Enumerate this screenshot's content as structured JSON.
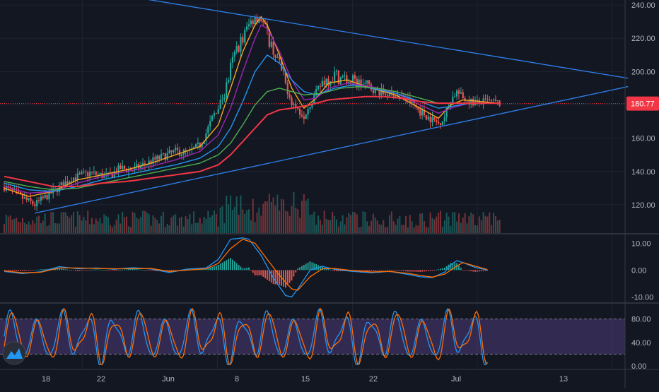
{
  "colors": {
    "background": "#131722",
    "grid": "#1f2331",
    "axis_text": "#b2b5be",
    "up": "#26a69a",
    "down": "#ef5350",
    "trendline": "#2f80ed",
    "ma_fast": "#f5a623",
    "ma_2": "#9c27b0",
    "ma_3": "#2196f3",
    "ma_4": "#4caf50",
    "ma_slow": "#f23645",
    "macd_line": "#2196f3",
    "signal_line": "#ff6d00",
    "stoch_k": "#2196f3",
    "stoch_d": "#ff6d00",
    "stoch_band": "#7e57c2",
    "price_label_bg": "#f23645"
  },
  "logo": {
    "icon": "tradingview-logo-icon"
  },
  "price_label": "180.77",
  "chart_data": [
    {
      "type": "candlestick",
      "panel": "price",
      "x_ticks": [
        "18",
        "22",
        "Jun",
        "8",
        "15",
        "22",
        "Jul",
        "13"
      ],
      "y_ticks": [
        "240.00",
        "220.00",
        "200.00",
        "180.00",
        "160.00",
        "140.00",
        "120.00"
      ],
      "ylim": [
        103,
        243
      ],
      "last_price": 180.77,
      "series": [
        {
          "name": "price",
          "anchors": [
            [
              0,
              131
            ],
            [
              3,
              124
            ],
            [
              5,
              120
            ],
            [
              8,
              128
            ],
            [
              11,
              136
            ],
            [
              14,
              139
            ],
            [
              17,
              137
            ],
            [
              19,
              142
            ],
            [
              21,
              141
            ],
            [
              24,
              146
            ],
            [
              26,
              149
            ],
            [
              28,
              152
            ],
            [
              30,
              151
            ],
            [
              32,
              156
            ],
            [
              33,
              163
            ],
            [
              34,
              172
            ],
            [
              36,
              186
            ],
            [
              37,
              202
            ],
            [
              38,
              214
            ],
            [
              39,
              220
            ],
            [
              40,
              228
            ],
            [
              41,
              234
            ],
            [
              42,
              232
            ],
            [
              43,
              222
            ],
            [
              44,
              213
            ],
            [
              45,
              204
            ],
            [
              46,
              192
            ],
            [
              47,
              182
            ],
            [
              48,
              177
            ],
            [
              49,
              174
            ],
            [
              50,
              181
            ],
            [
              51,
              187
            ],
            [
              52,
              194
            ],
            [
              54,
              198
            ],
            [
              56,
              195
            ],
            [
              58,
              193
            ],
            [
              60,
              190
            ],
            [
              62,
              187
            ],
            [
              64,
              186
            ],
            [
              66,
              183
            ],
            [
              68,
              176
            ],
            [
              70,
              171
            ],
            [
              71,
              169
            ],
            [
              72,
              173
            ],
            [
              73,
              183
            ],
            [
              74,
              188
            ],
            [
              75,
              184
            ],
            [
              77,
              181
            ],
            [
              79,
              182
            ],
            [
              81,
              181
            ]
          ]
        },
        {
          "name": "ma_fast",
          "anchors": [
            [
              0,
              130
            ],
            [
              4,
              125
            ],
            [
              8,
              128
            ],
            [
              12,
              135
            ],
            [
              16,
              138
            ],
            [
              20,
              141
            ],
            [
              24,
              145
            ],
            [
              28,
              150
            ],
            [
              32,
              155
            ],
            [
              35,
              168
            ],
            [
              37,
              190
            ],
            [
              39,
              212
            ],
            [
              41,
              228
            ],
            [
              42,
              233
            ],
            [
              43,
              228
            ],
            [
              45,
              210
            ],
            [
              47,
              190
            ],
            [
              49,
              178
            ],
            [
              51,
              184
            ],
            [
              53,
              193
            ],
            [
              56,
              195
            ],
            [
              60,
              190
            ],
            [
              64,
              186
            ],
            [
              68,
              178
            ],
            [
              71,
              172
            ],
            [
              73,
              180
            ],
            [
              75,
              183
            ],
            [
              81,
              181
            ]
          ]
        },
        {
          "name": "ma_2",
          "anchors": [
            [
              0,
              131
            ],
            [
              4,
              127
            ],
            [
              8,
              128
            ],
            [
              12,
              133
            ],
            [
              16,
              137
            ],
            [
              20,
              140
            ],
            [
              24,
              143
            ],
            [
              28,
              147
            ],
            [
              32,
              152
            ],
            [
              35,
              162
            ],
            [
              37,
              178
            ],
            [
              39,
              200
            ],
            [
              41,
              220
            ],
            [
              42,
              228
            ],
            [
              43,
              226
            ],
            [
              45,
              212
            ],
            [
              47,
              195
            ],
            [
              49,
              183
            ],
            [
              51,
              184
            ],
            [
              53,
              190
            ],
            [
              56,
              193
            ],
            [
              60,
              191
            ],
            [
              64,
              187
            ],
            [
              68,
              180
            ],
            [
              71,
              175
            ],
            [
              73,
              178
            ],
            [
              76,
              181
            ],
            [
              81,
              181
            ]
          ]
        },
        {
          "name": "ma_3",
          "anchors": [
            [
              0,
              133
            ],
            [
              4,
              129
            ],
            [
              8,
              128
            ],
            [
              12,
              131
            ],
            [
              16,
              135
            ],
            [
              20,
              138
            ],
            [
              24,
              141
            ],
            [
              28,
              144
            ],
            [
              32,
              148
            ],
            [
              35,
              155
            ],
            [
              37,
              166
            ],
            [
              39,
              182
            ],
            [
              41,
              200
            ],
            [
              43,
              210
            ],
            [
              45,
              205
            ],
            [
              47,
              195
            ],
            [
              49,
              188
            ],
            [
              51,
              186
            ],
            [
              54,
              190
            ],
            [
              57,
              192
            ],
            [
              60,
              190
            ],
            [
              64,
              187
            ],
            [
              68,
              182
            ],
            [
              71,
              178
            ],
            [
              73,
              179
            ],
            [
              76,
              181
            ],
            [
              81,
              181
            ]
          ]
        },
        {
          "name": "ma_4",
          "anchors": [
            [
              0,
              134
            ],
            [
              4,
              131
            ],
            [
              8,
              129
            ],
            [
              12,
              130
            ],
            [
              16,
              133
            ],
            [
              20,
              136
            ],
            [
              24,
              139
            ],
            [
              28,
              142
            ],
            [
              32,
              145
            ],
            [
              35,
              150
            ],
            [
              37,
              157
            ],
            [
              39,
              168
            ],
            [
              41,
              180
            ],
            [
              43,
              188
            ],
            [
              45,
              190
            ],
            [
              47,
              188
            ],
            [
              49,
              186
            ],
            [
              52,
              187
            ],
            [
              55,
              190
            ],
            [
              58,
              191
            ],
            [
              61,
              190
            ],
            [
              64,
              188
            ],
            [
              68,
              184
            ],
            [
              71,
              181
            ],
            [
              74,
              181
            ],
            [
              77,
              181
            ],
            [
              81,
              181
            ]
          ]
        },
        {
          "name": "ma_slow",
          "anchors": [
            [
              0,
              137
            ],
            [
              4,
              134
            ],
            [
              8,
              131
            ],
            [
              12,
              131
            ],
            [
              16,
              133
            ],
            [
              20,
              134
            ],
            [
              24,
              136
            ],
            [
              28,
              138
            ],
            [
              32,
              140
            ],
            [
              35,
              144
            ],
            [
              37,
              150
            ],
            [
              39,
              158
            ],
            [
              41,
              166
            ],
            [
              43,
              174
            ],
            [
              45,
              177
            ],
            [
              47,
              178
            ],
            [
              50,
              180
            ],
            [
              53,
              183
            ],
            [
              56,
              184
            ],
            [
              59,
              185
            ],
            [
              62,
              185
            ],
            [
              65,
              184
            ],
            [
              68,
              182
            ],
            [
              71,
              181
            ],
            [
              74,
              181
            ],
            [
              77,
              181
            ],
            [
              81,
              181
            ]
          ]
        }
      ],
      "trendlines": [
        {
          "name": "upper-trendline",
          "points": [
            [
              19,
              246
            ],
            [
              102,
              196
            ]
          ]
        },
        {
          "name": "lower-trendline",
          "points": [
            [
              5,
              115
            ],
            [
              102,
              191
            ]
          ]
        }
      ]
    },
    {
      "type": "macd",
      "panel": "macd",
      "y_ticks": [
        "10.00",
        "0.00",
        "-10.00"
      ],
      "ylim": [
        -12,
        13
      ],
      "series": [
        {
          "name": "macd_line",
          "anchors": [
            [
              0,
              -0.5
            ],
            [
              3,
              -1.3
            ],
            [
              6,
              -0.6
            ],
            [
              9,
              1.3
            ],
            [
              12,
              0.5
            ],
            [
              15,
              0.8
            ],
            [
              18,
              0.3
            ],
            [
              21,
              0.9
            ],
            [
              24,
              0.4
            ],
            [
              27,
              -0.9
            ],
            [
              30,
              0.4
            ],
            [
              33,
              0.8
            ],
            [
              35,
              4
            ],
            [
              37,
              11.5
            ],
            [
              39,
              12
            ],
            [
              40,
              11.5
            ],
            [
              42,
              5.5
            ],
            [
              44,
              -3
            ],
            [
              46,
              -9.5
            ],
            [
              47,
              -10
            ],
            [
              48,
              -7
            ],
            [
              50,
              0
            ],
            [
              52,
              1.4
            ],
            [
              54,
              0.3
            ],
            [
              57,
              -0.5
            ],
            [
              60,
              -1
            ],
            [
              63,
              -0.5
            ],
            [
              66,
              -1.6
            ],
            [
              68,
              -2.5
            ],
            [
              70,
              -2.8
            ],
            [
              72,
              -0.8
            ],
            [
              73,
              2
            ],
            [
              74,
              3.5
            ],
            [
              75,
              2.8
            ],
            [
              77,
              1
            ],
            [
              79,
              0
            ]
          ]
        },
        {
          "name": "signal_line",
          "anchors": [
            [
              0,
              -0.3
            ],
            [
              3,
              -1
            ],
            [
              6,
              -0.8
            ],
            [
              9,
              0.8
            ],
            [
              12,
              0.8
            ],
            [
              15,
              0.6
            ],
            [
              18,
              0.5
            ],
            [
              21,
              0.5
            ],
            [
              24,
              0.6
            ],
            [
              27,
              -0.5
            ],
            [
              30,
              0
            ],
            [
              33,
              0.5
            ],
            [
              35,
              2.5
            ],
            [
              37,
              8
            ],
            [
              39,
              11.5
            ],
            [
              41,
              10
            ],
            [
              43,
              4
            ],
            [
              45,
              -2
            ],
            [
              47,
              -7
            ],
            [
              48,
              -7.5
            ],
            [
              50,
              -2.5
            ],
            [
              52,
              0.5
            ],
            [
              54,
              0.6
            ],
            [
              57,
              -0.2
            ],
            [
              60,
              -0.7
            ],
            [
              63,
              -0.5
            ],
            [
              66,
              -1.2
            ],
            [
              68,
              -2
            ],
            [
              70,
              -2.6
            ],
            [
              72,
              -1.5
            ],
            [
              74,
              1.5
            ],
            [
              75,
              2.8
            ],
            [
              77,
              1.5
            ],
            [
              79,
              0.2
            ]
          ]
        }
      ]
    },
    {
      "type": "stochastic",
      "panel": "stoch",
      "y_ticks": [
        "80.00",
        "40.00",
        "0.00"
      ],
      "ylim": [
        -5,
        105
      ],
      "band": [
        20,
        80
      ],
      "series": [
        {
          "name": "stoch_k",
          "cycle_days": 4.2
        },
        {
          "name": "stoch_d",
          "cycle_days": 4.2
        }
      ]
    }
  ]
}
